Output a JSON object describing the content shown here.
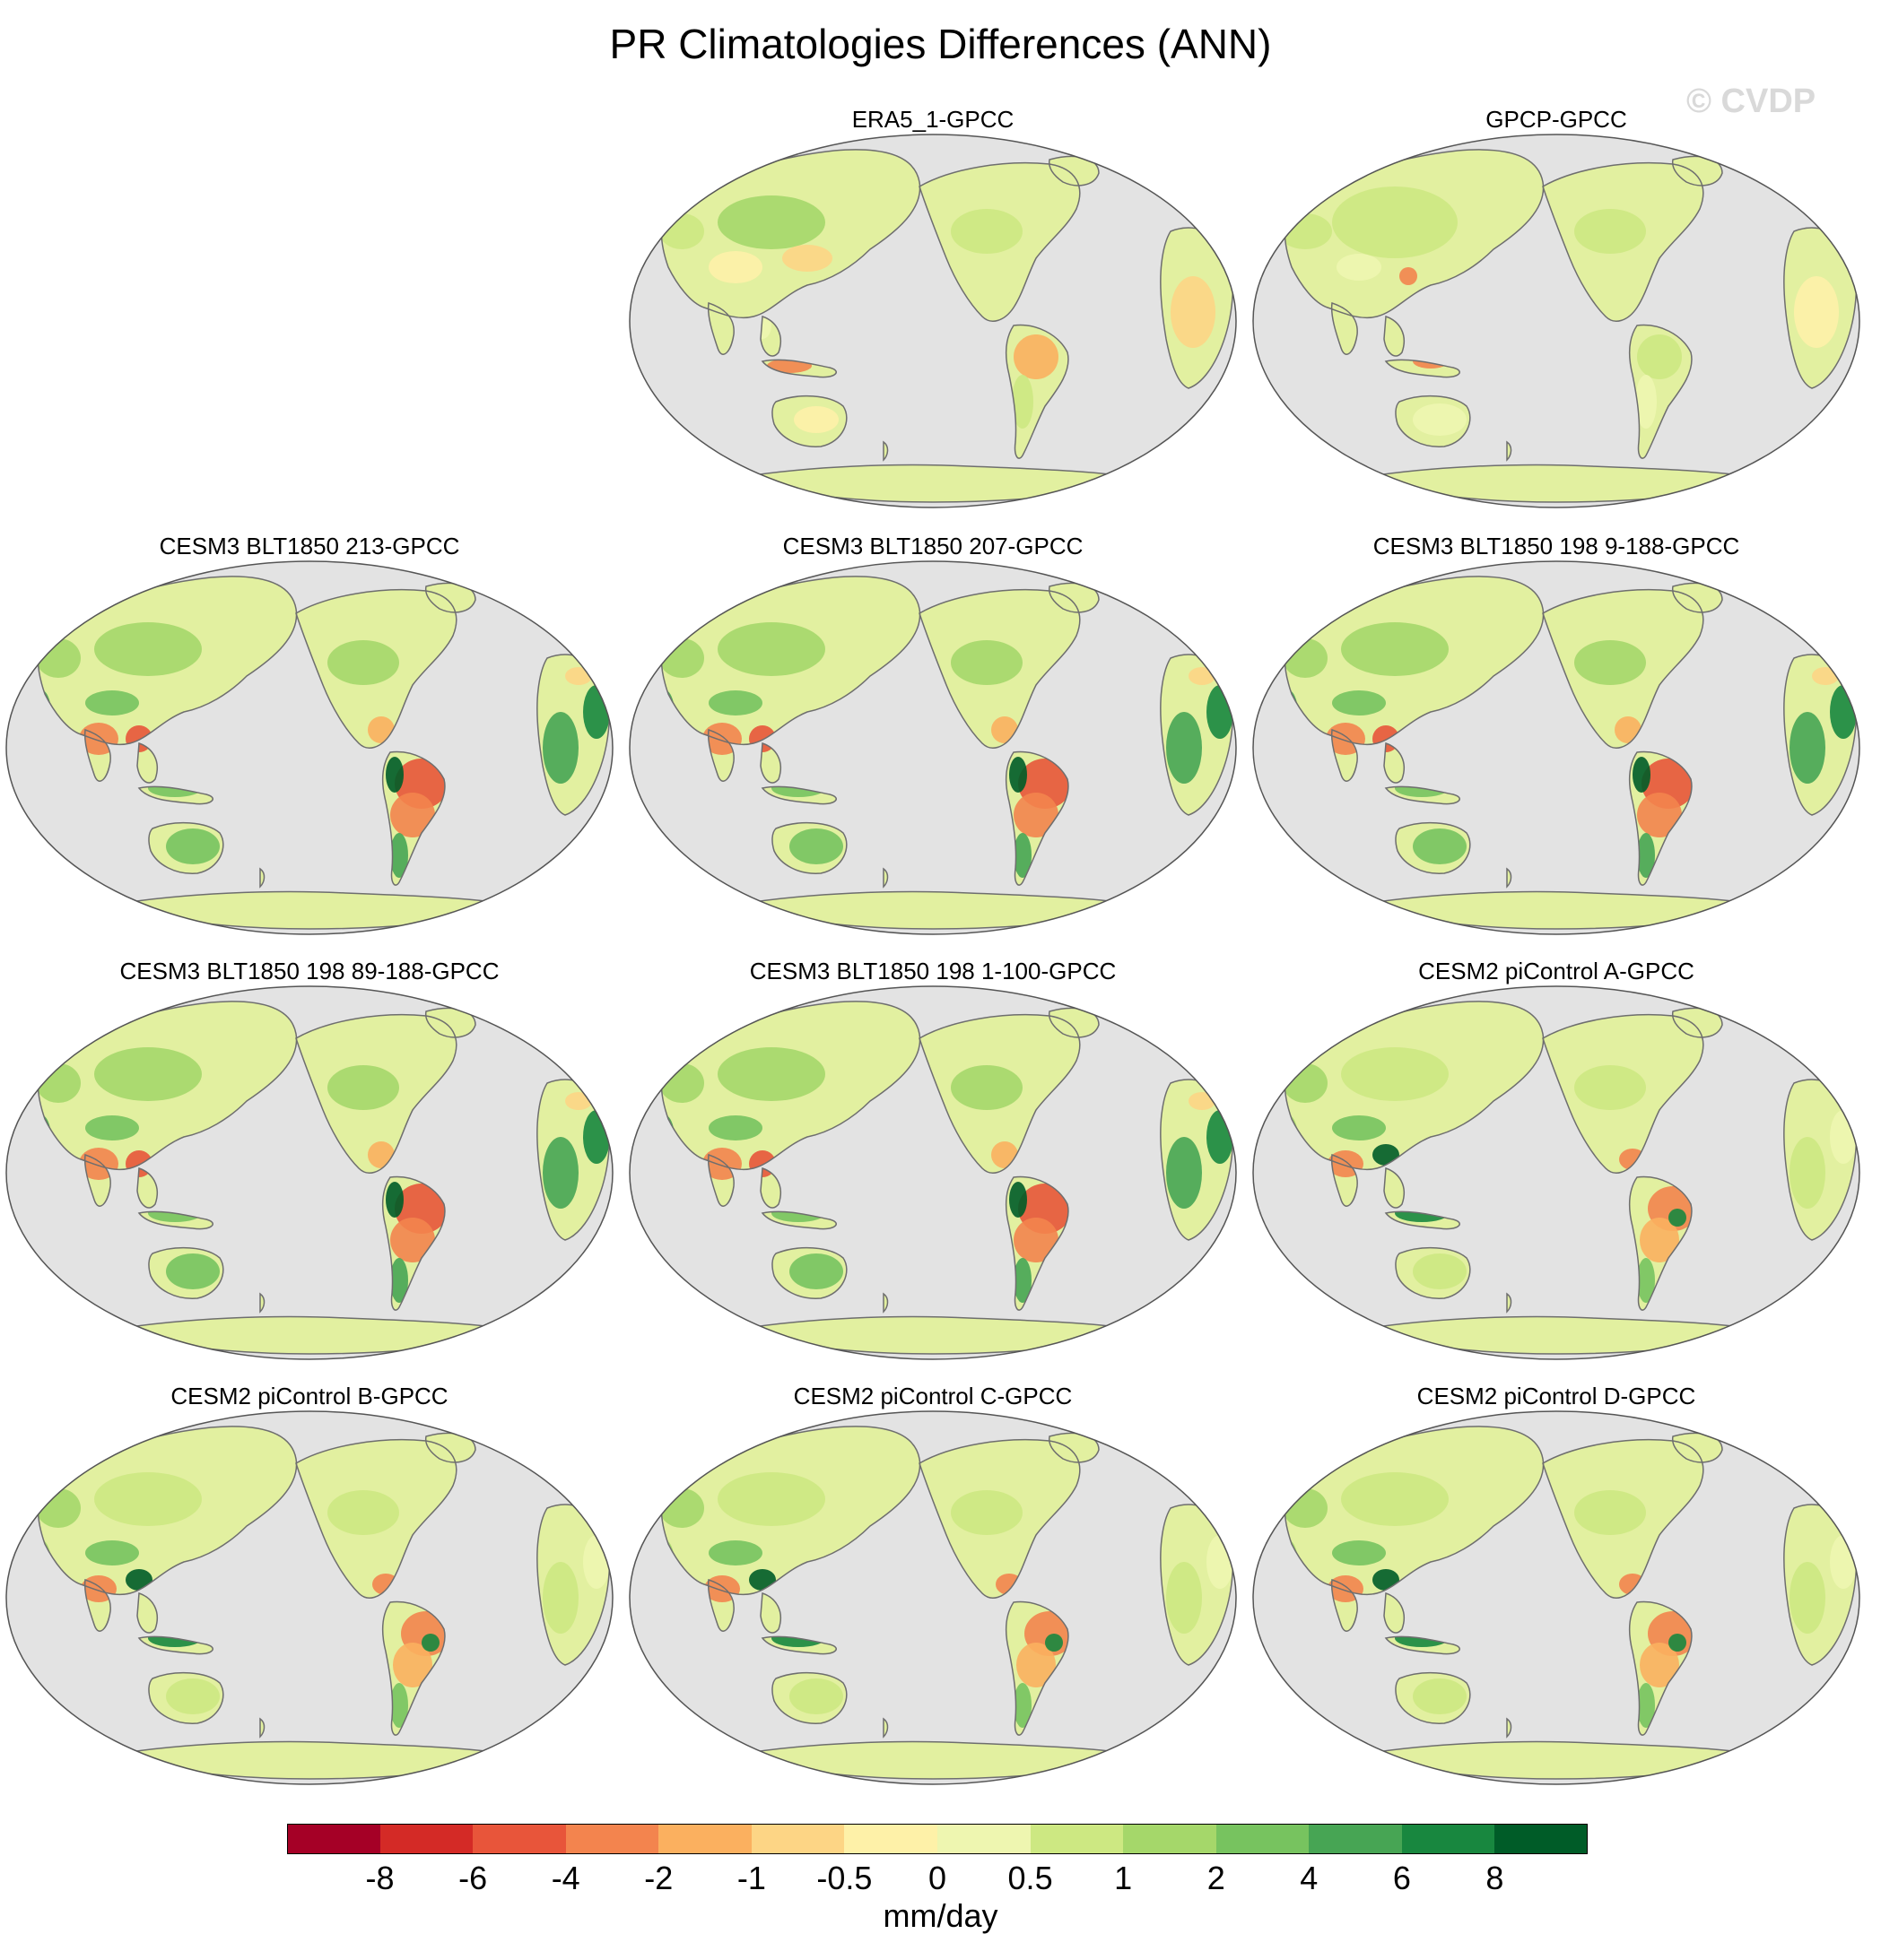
{
  "title": "PR Climatologies Differences (ANN)",
  "watermark": "© CVDP",
  "colors": {
    "ocean": "#e3e3e3",
    "coast": "#6e6e6e",
    "land_base": "#e2f0a0"
  },
  "panels": [
    {
      "label": "ERA5_1-GPCC",
      "row": 0,
      "col": 1,
      "pattern": "era5"
    },
    {
      "label": "GPCP-GPCC",
      "row": 0,
      "col": 2,
      "pattern": "gpcp"
    },
    {
      "label": "CESM3 BLT1850 213-GPCC",
      "row": 1,
      "col": 0,
      "pattern": "cesm3"
    },
    {
      "label": "CESM3 BLT1850 207-GPCC",
      "row": 1,
      "col": 1,
      "pattern": "cesm3"
    },
    {
      "label": "CESM3 BLT1850 198 9-188-GPCC",
      "row": 1,
      "col": 2,
      "pattern": "cesm3"
    },
    {
      "label": "CESM3 BLT1850 198 89-188-GPCC",
      "row": 2,
      "col": 0,
      "pattern": "cesm3"
    },
    {
      "label": "CESM3 BLT1850 198 1-100-GPCC",
      "row": 2,
      "col": 1,
      "pattern": "cesm3"
    },
    {
      "label": "CESM2 piControl A-GPCC",
      "row": 2,
      "col": 2,
      "pattern": "cesm2"
    },
    {
      "label": "CESM2 piControl B-GPCC",
      "row": 3,
      "col": 0,
      "pattern": "cesm2"
    },
    {
      "label": "CESM2 piControl C-GPCC",
      "row": 3,
      "col": 1,
      "pattern": "cesm2"
    },
    {
      "label": "CESM2 piControl D-GPCC",
      "row": 3,
      "col": 2,
      "pattern": "cesm2"
    }
  ],
  "colorbar": {
    "units": "mm/day",
    "levels": [
      "-8",
      "-6",
      "-4",
      "-2",
      "-1",
      "-0.5",
      "0",
      "0.5",
      "1",
      "2",
      "4",
      "6",
      "8"
    ],
    "colors": [
      "#a50026",
      "#d42a26",
      "#e8553a",
      "#f3844e",
      "#fbb05f",
      "#fdd585",
      "#fef1a8",
      "#eef6b0",
      "#cde882",
      "#a5d76a",
      "#77c35f",
      "#47a554",
      "#18873f",
      "#005c28"
    ]
  }
}
